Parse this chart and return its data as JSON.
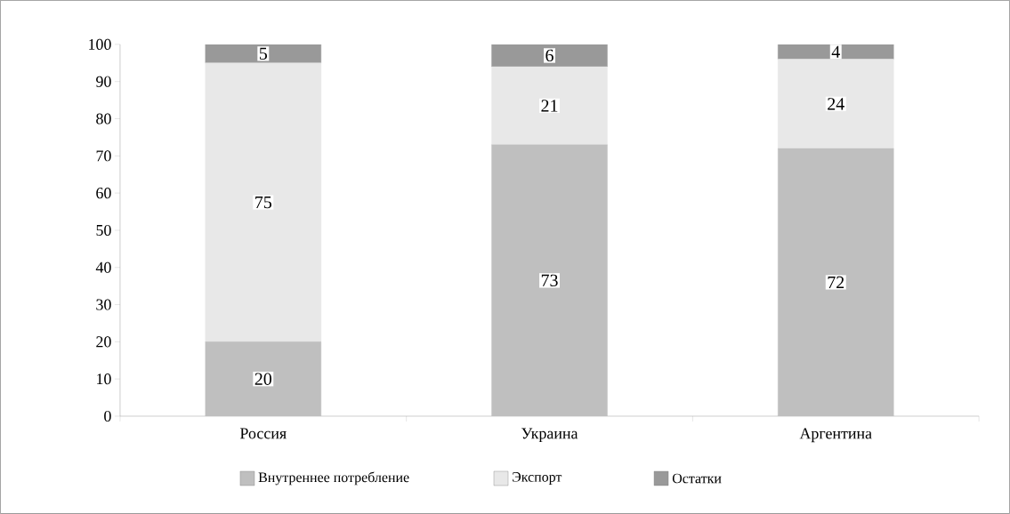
{
  "chart_data": {
    "type": "bar",
    "stacked": true,
    "categories": [
      "Россия",
      "Украина",
      "Аргентина"
    ],
    "series": [
      {
        "name": "Внутреннее потребление",
        "color": "#bfbfbf",
        "values": [
          20,
          73,
          72
        ],
        "value_labels": [
          "20",
          "73",
          "72"
        ]
      },
      {
        "name": "Экспорт",
        "color": "#e8e8e8",
        "values": [
          75,
          21,
          24
        ],
        "value_labels": [
          "75",
          "21",
          "24"
        ]
      },
      {
        "name": "Остатки",
        "color": "#999999",
        "values": [
          5,
          6,
          4
        ],
        "value_labels": [
          "5",
          "6",
          "4"
        ]
      }
    ],
    "ylim": [
      0,
      100
    ],
    "yticks": [
      0,
      10,
      20,
      30,
      40,
      50,
      60,
      70,
      80,
      90,
      100
    ],
    "legend": "bottom",
    "grid": false
  }
}
